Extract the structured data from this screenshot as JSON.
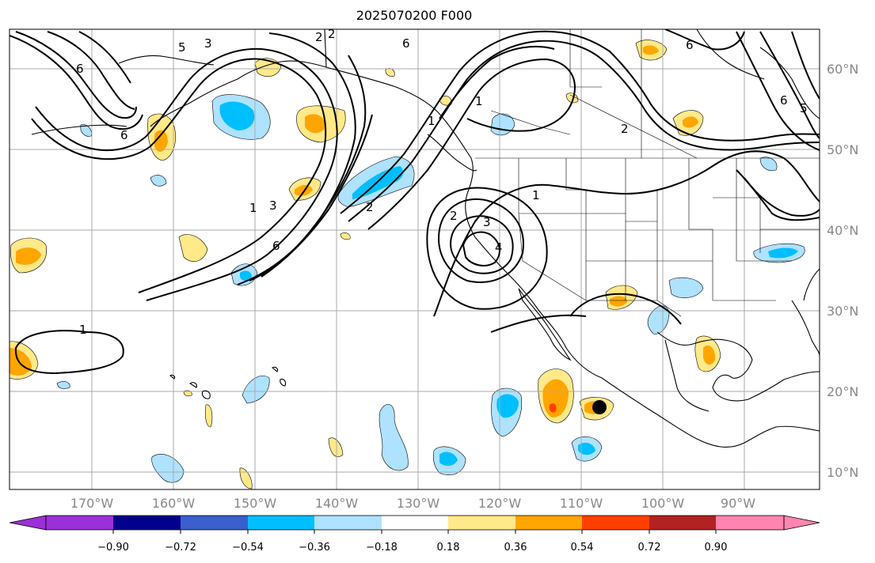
{
  "title": "2025070200 F000",
  "lon_labels": [
    "170°W",
    "160°W",
    "150°W",
    "140°W",
    "130°W",
    "120°W",
    "110°W",
    "100°W",
    "90°W"
  ],
  "lat_labels": [
    "60°N",
    "50°N",
    "40°N",
    "30°N",
    "20°N",
    "10°N"
  ],
  "contour_labels": [
    "6",
    "5",
    "3",
    "2",
    "1",
    "6",
    "1",
    "2",
    "6",
    "1",
    "6",
    "5",
    "2",
    "1",
    "2",
    "3",
    "4",
    "1",
    "2",
    "3",
    "6",
    "6"
  ],
  "colorbar": {
    "ticks": [
      "−0.90",
      "−0.72",
      "−0.54",
      "−0.36",
      "−0.18",
      "0.18",
      "0.36",
      "0.54",
      "0.72",
      "0.90"
    ],
    "colors": [
      "#9b30d8",
      "#00008b",
      "#3a5fcd",
      "#00bfff",
      "#aee2ff",
      "#ffffff",
      "#ffe989",
      "#ffa500",
      "#ff3f00",
      "#b22222",
      "#ff85b0"
    ]
  },
  "colors": {
    "contour": "#000000",
    "grid": "#aaaaaa",
    "label": "#888888"
  }
}
